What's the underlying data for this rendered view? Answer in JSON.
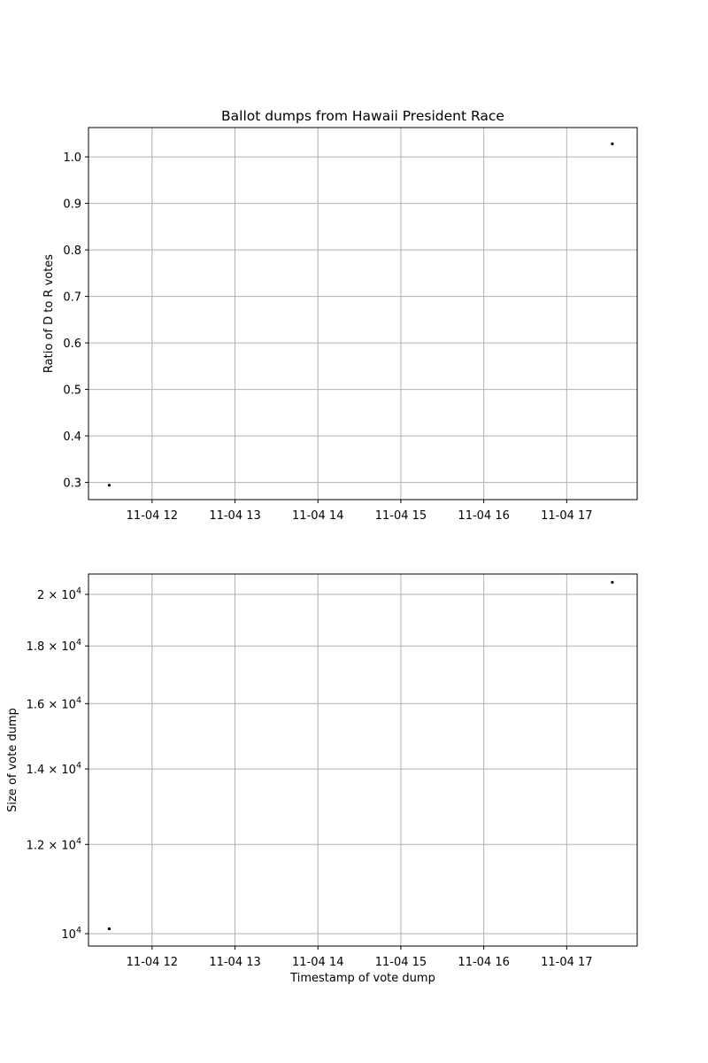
{
  "chart_data": [
    {
      "type": "scatter",
      "title": "Ballot dumps from Hawaii President Race",
      "xlabel": "",
      "ylabel": "Ratio of D to R votes",
      "x_tick_labels": [
        "11-04 12",
        "11-04 13",
        "11-04 14",
        "11-04 15",
        "11-04 16",
        "11-04 17"
      ],
      "x_ticks": [
        "2020-11-04 12:00",
        "2020-11-04 13:00",
        "2020-11-04 14:00",
        "2020-11-04 15:00",
        "2020-11-04 16:00",
        "2020-11-04 17:00"
      ],
      "xlim": [
        "2020-11-04 11:14",
        "2020-11-04 17:51"
      ],
      "y_ticks": [
        0.3,
        0.4,
        0.5,
        0.6,
        0.7,
        0.8,
        0.9,
        1.0
      ],
      "y_tick_labels": [
        "0.3",
        "0.4",
        "0.5",
        "0.6",
        "0.7",
        "0.8",
        "0.9",
        "1.0"
      ],
      "ylim": [
        0.263,
        1.063
      ],
      "scale": "linear",
      "grid": true,
      "point_color": "#000000",
      "points": [
        {
          "x": "2020-11-04 11:29",
          "y": 0.294
        },
        {
          "x": "2020-11-04 17:33",
          "y": 1.028
        }
      ]
    },
    {
      "type": "scatter",
      "title": "",
      "xlabel": "Timestamp of vote dump",
      "ylabel": "Size of vote dump",
      "x_tick_labels": [
        "11-04 12",
        "11-04 13",
        "11-04 14",
        "11-04 15",
        "11-04 16",
        "11-04 17"
      ],
      "x_ticks": [
        "2020-11-04 12:00",
        "2020-11-04 13:00",
        "2020-11-04 14:00",
        "2020-11-04 15:00",
        "2020-11-04 16:00",
        "2020-11-04 17:00"
      ],
      "xlim": [
        "2020-11-04 11:14",
        "2020-11-04 17:51"
      ],
      "y_ticks": [
        10000,
        12000,
        14000,
        16000,
        18000,
        20000
      ],
      "y_tick_mantissas": [
        "10",
        "1.2 × 10",
        "1.4 × 10",
        "1.6 × 10",
        "1.8 × 10",
        "2 × 10"
      ],
      "y_tick_exponent": "4",
      "ylim": [
        9750,
        20850
      ],
      "scale": "log",
      "grid": true,
      "point_color": "#000000",
      "points": [
        {
          "x": "2020-11-04 11:29",
          "y": 10100
        },
        {
          "x": "2020-11-04 17:33",
          "y": 20500
        }
      ]
    }
  ]
}
